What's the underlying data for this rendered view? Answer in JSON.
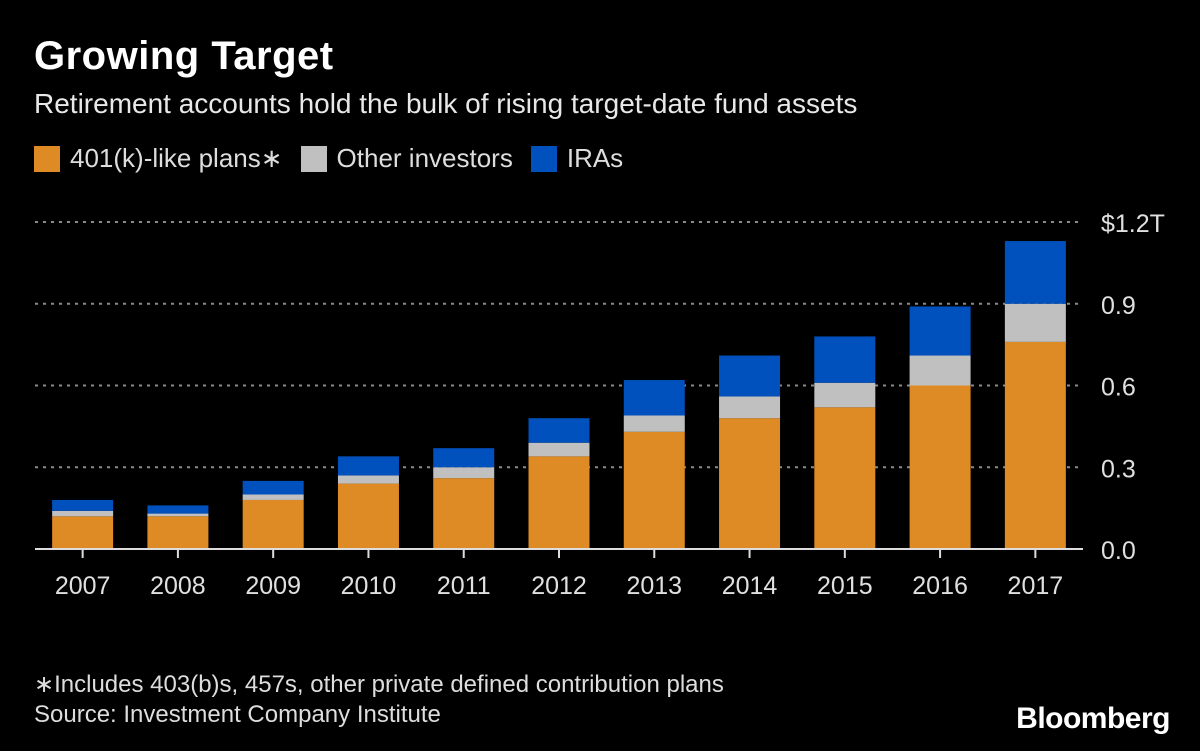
{
  "title": "Growing Target",
  "subtitle": "Retirement accounts hold the bulk of rising target-date fund assets",
  "footnote": "∗Includes 403(b)s, 457s, other private defined contribution plans",
  "source": "Source: Investment Company Institute",
  "logo": "Bloomberg",
  "chart_data": {
    "type": "bar",
    "stacked": true,
    "categories": [
      "2007",
      "2008",
      "2009",
      "2010",
      "2011",
      "2012",
      "2013",
      "2014",
      "2015",
      "2016",
      "2017"
    ],
    "series": [
      {
        "name": "401(k)-like plans∗",
        "color": "#de8a25",
        "values": [
          0.12,
          0.12,
          0.18,
          0.24,
          0.26,
          0.34,
          0.43,
          0.48,
          0.52,
          0.6,
          0.76
        ]
      },
      {
        "name": "Other investors",
        "color": "#c0c0c0",
        "values": [
          0.02,
          0.01,
          0.02,
          0.03,
          0.04,
          0.05,
          0.06,
          0.08,
          0.09,
          0.11,
          0.14
        ]
      },
      {
        "name": "IRAs",
        "color": "#0051be",
        "values": [
          0.04,
          0.03,
          0.05,
          0.07,
          0.07,
          0.09,
          0.13,
          0.15,
          0.17,
          0.18,
          0.23
        ]
      }
    ],
    "yticks": [
      {
        "value": 0,
        "label": "0.0"
      },
      {
        "value": 0.3,
        "label": "0.3"
      },
      {
        "value": 0.6,
        "label": "0.6"
      },
      {
        "value": 0.9,
        "label": "0.9"
      },
      {
        "value": 1.2,
        "label": "$1.2T"
      }
    ],
    "ylim": [
      0,
      1.2
    ],
    "grid": true,
    "legend": "top-left",
    "y_axis_position": "right"
  }
}
